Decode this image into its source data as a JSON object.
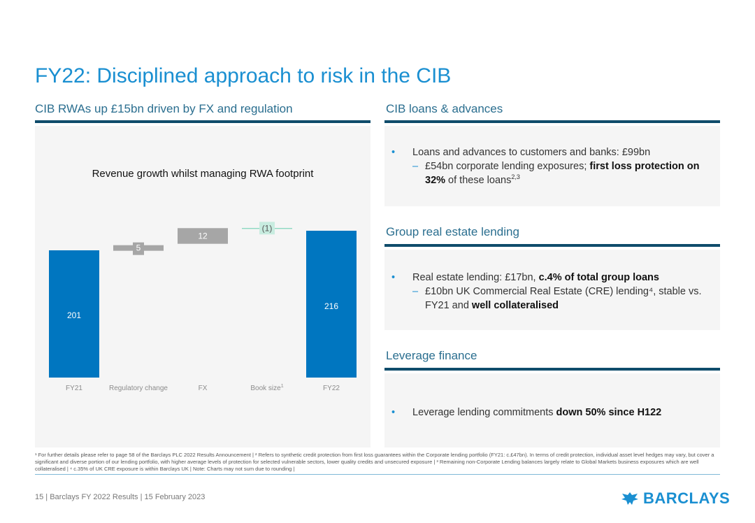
{
  "title": "FY22: Disciplined approach to risk in the CIB",
  "left": {
    "heading": "CIB RWAs up £15bn driven by FX and regulation"
  },
  "chart_data": {
    "type": "waterfall",
    "title": "Revenue growth whilst managing RWA footprint",
    "categories": [
      "FY21",
      "Regulatory change",
      "FX",
      "Book size",
      "FY22"
    ],
    "category_superscripts": [
      "",
      "",
      "",
      "1",
      ""
    ],
    "values": [
      201,
      5,
      12,
      -1,
      216
    ],
    "value_labels": [
      "201",
      "5",
      "12",
      "(1)",
      "216"
    ],
    "kinds": [
      "total",
      "delta",
      "delta",
      "delta",
      "total"
    ],
    "colors": {
      "total": "#0076c0",
      "increase": "#a6a6a6",
      "decrease": "#c8ece0",
      "decrease_line": "#7fd4bb",
      "total_label": "#ffffff",
      "delta_label": "#ffffff",
      "decrease_label": "#555555",
      "axis_label": "#8c8c8c"
    }
  },
  "right": {
    "sections": [
      {
        "heading": "CIB loans & advances",
        "bullet": {
          "parts": [
            {
              "t": "Loans and advances to customers and banks: £99bn",
              "b": false
            }
          ]
        },
        "sub": {
          "parts": [
            {
              "t": "£54bn corporate lending exposures; ",
              "b": false
            },
            {
              "t": "first loss protection on 32%",
              "b": true
            },
            {
              "t": " of these loans",
              "b": false
            }
          ],
          "sup": "2,3"
        }
      },
      {
        "heading": "Group real estate lending",
        "bullet": {
          "parts": [
            {
              "t": "Real estate lending: £17bn, ",
              "b": false
            },
            {
              "t": "c.4% of total group loans",
              "b": true
            }
          ]
        },
        "sub": {
          "parts": [
            {
              "t": "£10bn UK Commercial Real Estate (CRE) lending",
              "b": false
            },
            {
              "t": "⁴",
              "b": false
            },
            {
              "t": ", stable vs. FY21 and ",
              "b": false
            },
            {
              "t": "well collateralised",
              "b": true
            }
          ]
        }
      },
      {
        "heading": "Leverage finance",
        "bullet": {
          "parts": [
            {
              "t": "Leverage lending commitments ",
              "b": false
            },
            {
              "t": "down 50% since H122",
              "b": true
            }
          ]
        }
      }
    ]
  },
  "footnote": "¹ For further details please refer to page 58 of the Barclays PLC 2022 Results Announcement | ² Refers to synthetic credit protection from first loss guarantees within the Corporate lending portfolio (FY21: c.£47bn). In terms of credit protection, individual asset level hedges may vary, but cover a significant and diverse portion of our lending portfolio, with higher average levels of protection for selected vulnerable sectors, lower quality credits and unsecured exposure | ³ Remaining non-Corporate Lending balances largely relate to Global Markets business exposures which are well collateralised | ⁴ c.35% of UK CRE exposure is within Barclays UK | Note: Charts may not sum due to rounding |",
  "footer": {
    "text": "15 | Barclays FY 2022 Results | 15 February 2023",
    "logo": "BARCLAYS",
    "logo_icon": "eagle-icon"
  }
}
